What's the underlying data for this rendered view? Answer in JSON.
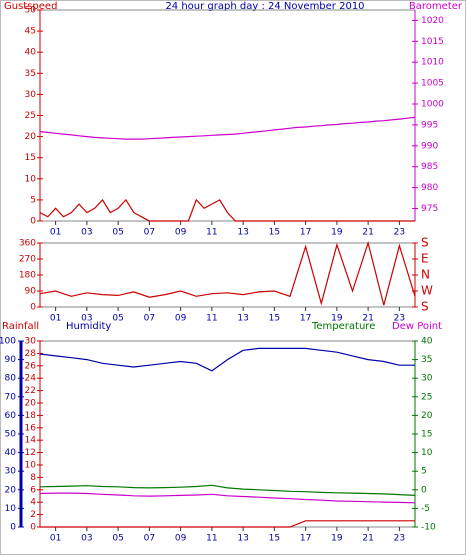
{
  "chart_data": [
    {
      "type": "line",
      "title": "24 hour graph day : 24 November 2010",
      "xlim": [
        0,
        24
      ],
      "xticks": [
        {
          "value": 1,
          "label": "01"
        },
        {
          "value": 3,
          "label": "03"
        },
        {
          "value": 5,
          "label": "05"
        },
        {
          "value": 7,
          "label": "07"
        },
        {
          "value": 9,
          "label": "09"
        },
        {
          "value": 11,
          "label": "11"
        },
        {
          "value": 13,
          "label": "13"
        },
        {
          "value": 15,
          "label": "15"
        },
        {
          "value": 17,
          "label": "17"
        },
        {
          "value": 19,
          "label": "19"
        },
        {
          "value": 21,
          "label": "21"
        },
        {
          "value": 23,
          "label": "23"
        }
      ],
      "ylim": [
        0,
        50
      ],
      "yticks": [
        0,
        5,
        10,
        15,
        20,
        25,
        30,
        35,
        40,
        45,
        50
      ],
      "ycolor": "#cc0000",
      "y2lim": [
        972,
        1022.5
      ],
      "y2ticks": [
        975,
        980,
        985,
        990,
        995,
        1000,
        1005,
        1010,
        1015,
        1020
      ],
      "y2color": "#cc00cc",
      "x": [
        0,
        0.5,
        1,
        1.5,
        2,
        2.5,
        3,
        3.5,
        4,
        4.5,
        5,
        5.5,
        6,
        6.5,
        7,
        7.5,
        8,
        8.5,
        9,
        9.5,
        10,
        10.5,
        11,
        11.5,
        12,
        12.5,
        13,
        13.5,
        14,
        14.5,
        15,
        15.5,
        16,
        16.5,
        17,
        17.5,
        18,
        18.5,
        19,
        19.5,
        20,
        20.5,
        21,
        21.5,
        22,
        22.5,
        23,
        23.5,
        24
      ],
      "series": [
        {
          "name": "Gustspeed",
          "color": "#cc0000",
          "axis": "y",
          "values": [
            2,
            1,
            3,
            1,
            2,
            4,
            2,
            3,
            5,
            2,
            3,
            5,
            2,
            1,
            0,
            0,
            0,
            0,
            0,
            0,
            5,
            3,
            4,
            5,
            2,
            0,
            0,
            0,
            0,
            0,
            0,
            0,
            0,
            0,
            0,
            0,
            0,
            0,
            0,
            0,
            0,
            0,
            0,
            0,
            0,
            0,
            0,
            0,
            0
          ]
        },
        {
          "name": "Barometer",
          "color": "#cc00cc",
          "axis": "y2",
          "values": [
            993.4,
            993.2,
            993,
            992.8,
            992.6,
            992.4,
            992.2,
            992,
            991.9,
            991.8,
            991.7,
            991.6,
            991.6,
            991.6,
            991.7,
            991.8,
            991.9,
            992,
            992.1,
            992.2,
            992.3,
            992.4,
            992.5,
            992.6,
            992.7,
            992.8,
            993,
            993.2,
            993.4,
            993.6,
            993.8,
            994,
            994.2,
            994.4,
            994.5,
            994.7,
            994.8,
            995,
            995.1,
            995.3,
            995.4,
            995.6,
            995.7,
            995.9,
            996,
            996.2,
            996.4,
            996.6,
            996.8
          ]
        }
      ]
    },
    {
      "type": "line",
      "xlim": [
        0,
        24
      ],
      "xticks": [
        {
          "value": 1,
          "label": "01"
        },
        {
          "value": 3,
          "label": "03"
        },
        {
          "value": 5,
          "label": "05"
        },
        {
          "value": 7,
          "label": "07"
        },
        {
          "value": 9,
          "label": "09"
        },
        {
          "value": 11,
          "label": "11"
        },
        {
          "value": 13,
          "label": "13"
        },
        {
          "value": 15,
          "label": "15"
        },
        {
          "value": 17,
          "label": "17"
        },
        {
          "value": 19,
          "label": "19"
        },
        {
          "value": 21,
          "label": "21"
        },
        {
          "value": 23,
          "label": "23"
        }
      ],
      "ylim": [
        0,
        360
      ],
      "yticks": [
        0,
        90,
        180,
        270,
        360
      ],
      "ycolor": "#cc0000",
      "y2lim": [
        0,
        360
      ],
      "y2ticks": [
        {
          "value": 360,
          "label": "S"
        },
        {
          "value": 270,
          "label": "E"
        },
        {
          "value": 180,
          "label": "N"
        },
        {
          "value": 90,
          "label": "W"
        },
        {
          "value": 0,
          "label": "S"
        }
      ],
      "y2color": "#cc0000",
      "x": [
        0,
        1,
        2,
        3,
        4,
        5,
        6,
        7,
        8,
        9,
        10,
        11,
        12,
        13,
        14,
        15,
        16,
        17,
        18,
        19,
        20,
        21,
        22,
        23,
        24
      ],
      "series": [
        {
          "color": "#cc0000",
          "axis": "y",
          "values": [
            75,
            90,
            60,
            80,
            70,
            65,
            85,
            55,
            70,
            90,
            60,
            75,
            80,
            70,
            85,
            90,
            60,
            340,
            20,
            350,
            90,
            360,
            10,
            345,
            60
          ]
        }
      ]
    },
    {
      "type": "line",
      "xlim": [
        0,
        24
      ],
      "xticks": [
        {
          "value": 1,
          "label": "01"
        },
        {
          "value": 3,
          "label": "03"
        },
        {
          "value": 5,
          "label": "05"
        },
        {
          "value": 7,
          "label": "07"
        },
        {
          "value": 9,
          "label": "09"
        },
        {
          "value": 11,
          "label": "11"
        },
        {
          "value": 13,
          "label": "13"
        },
        {
          "value": 15,
          "label": "15"
        },
        {
          "value": 17,
          "label": "17"
        },
        {
          "value": 19,
          "label": "19"
        },
        {
          "value": 21,
          "label": "21"
        },
        {
          "value": 23,
          "label": "23"
        }
      ],
      "ylim": [
        0,
        30
      ],
      "yticks": [
        0,
        2,
        4,
        6,
        8,
        10,
        12,
        14,
        16,
        18,
        20,
        22,
        24,
        26,
        28,
        30
      ],
      "ycolor": "#cc0000",
      "y2lim": [
        -10,
        40
      ],
      "y2ticks": [
        -10,
        -5,
        0,
        5,
        10,
        15,
        20,
        25,
        30,
        35,
        40
      ],
      "y2color": "#007700",
      "y3lim": [
        0,
        100
      ],
      "y3ticks": [
        0,
        10,
        20,
        30,
        40,
        50,
        60,
        70,
        80,
        90,
        100
      ],
      "y3color": "#0000aa",
      "x": [
        0,
        1,
        2,
        3,
        4,
        5,
        6,
        7,
        8,
        9,
        10,
        11,
        12,
        13,
        14,
        15,
        16,
        17,
        18,
        19,
        20,
        21,
        22,
        23,
        24
      ],
      "series": [
        {
          "name": "Rainfall",
          "color": "#cc0000",
          "axis": "y",
          "values": [
            0,
            0,
            0,
            0,
            0,
            0,
            0,
            0,
            0,
            0,
            0,
            0,
            0,
            0,
            0,
            0,
            0,
            1,
            1,
            1,
            1,
            1,
            1,
            1,
            1
          ]
        },
        {
          "name": "Humidity",
          "color": "#0000aa",
          "axis": "y3",
          "values": [
            93,
            92,
            91,
            90,
            88,
            87,
            86,
            87,
            88,
            89,
            88,
            84,
            90,
            95,
            96,
            96,
            96,
            96,
            95,
            94,
            92,
            90,
            89,
            87,
            87
          ]
        },
        {
          "name": "Temperature",
          "color": "#007700",
          "axis": "y2",
          "values": [
            0.8,
            0.9,
            1.0,
            1.1,
            0.9,
            0.8,
            0.6,
            0.5,
            0.6,
            0.7,
            0.9,
            1.2,
            0.5,
            0.2,
            0,
            -0.2,
            -0.4,
            -0.5,
            -0.7,
            -0.8,
            -0.9,
            -1,
            -1.1,
            -1.3,
            -1.5
          ]
        },
        {
          "name": "Dew Point",
          "color": "#cc00cc",
          "axis": "y2",
          "values": [
            -1,
            -0.9,
            -0.9,
            -1,
            -1.2,
            -1.4,
            -1.6,
            -1.7,
            -1.6,
            -1.5,
            -1.4,
            -1.2,
            -1.6,
            -1.8,
            -2,
            -2.2,
            -2.4,
            -2.6,
            -2.8,
            -3,
            -3.1,
            -3.2,
            -3.3,
            -3.4,
            -3.5
          ]
        }
      ]
    }
  ]
}
